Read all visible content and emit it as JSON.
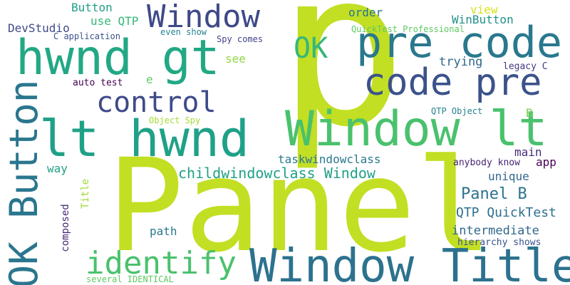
{
  "words": [
    {
      "text": "p",
      "color": "#c2df23"
    },
    {
      "text": "Panel",
      "color": "#c2df23"
    },
    {
      "text": "Window Title",
      "color": "#2c728e"
    },
    {
      "text": "Window lt",
      "color": "#4ac16d"
    },
    {
      "text": "hwnd gt",
      "color": "#22a884"
    },
    {
      "text": "pre code",
      "color": "#2a788e"
    },
    {
      "text": "code pre",
      "color": "#3b528b"
    },
    {
      "text": "lt hwnd",
      "color": "#1fa187"
    },
    {
      "text": "OK Button",
      "color": "#2a768e"
    },
    {
      "text": "Window",
      "color": "#3e4989"
    },
    {
      "text": "OK",
      "color": "#35b779"
    },
    {
      "text": "control",
      "color": "#3e4a89"
    },
    {
      "text": "identify",
      "color": "#4ac16d"
    },
    {
      "text": "childwindowclass Window",
      "color": "#1fa187"
    },
    {
      "text": "Panel B",
      "color": "#2c728e"
    },
    {
      "text": "QTP QuickTest",
      "color": "#2d708e"
    },
    {
      "text": "intermediate",
      "color": "#31688e"
    },
    {
      "text": "taskwindowclass",
      "color": "#2a788e"
    },
    {
      "text": "hierarchy shows",
      "color": "#3b528b"
    },
    {
      "text": "composed",
      "color": "#482878"
    },
    {
      "text": "Title",
      "color": "#a0da39"
    },
    {
      "text": "path",
      "color": "#2a788e"
    },
    {
      "text": "way",
      "color": "#1fa187"
    },
    {
      "text": "unique",
      "color": "#31688e"
    },
    {
      "text": "main",
      "color": "#472c7a"
    },
    {
      "text": "app",
      "color": "#440154"
    },
    {
      "text": "anybody know",
      "color": "#482475"
    },
    {
      "text": "B",
      "color": "#7ad151"
    },
    {
      "text": "QTP Object",
      "color": "#26828e"
    },
    {
      "text": "trying",
      "color": "#31688e"
    },
    {
      "text": "legacy C",
      "color": "#443a83"
    },
    {
      "text": "see",
      "color": "#90d743"
    },
    {
      "text": "e",
      "color": "#5ec962"
    },
    {
      "text": "auto test",
      "color": "#440154"
    },
    {
      "text": "Object Spy",
      "color": "#a5db36"
    },
    {
      "text": "several IDENTICAL",
      "color": "#5ec962"
    },
    {
      "text": "Button",
      "color": "#1f9e89"
    },
    {
      "text": "use QTP",
      "color": "#35b779"
    },
    {
      "text": "DevStudio",
      "color": "#3e4989"
    },
    {
      "text": "C application",
      "color": "#3b528b"
    },
    {
      "text": "even show",
      "color": "#26828e"
    },
    {
      "text": "Spy comes",
      "color": "#414487"
    },
    {
      "text": "QuickTest Professional",
      "color": "#5ec962"
    },
    {
      "text": "order",
      "color": "#2c728e"
    },
    {
      "text": "view",
      "color": "#d8e219"
    },
    {
      "text": "WinButton",
      "color": "#21918c"
    }
  ]
}
